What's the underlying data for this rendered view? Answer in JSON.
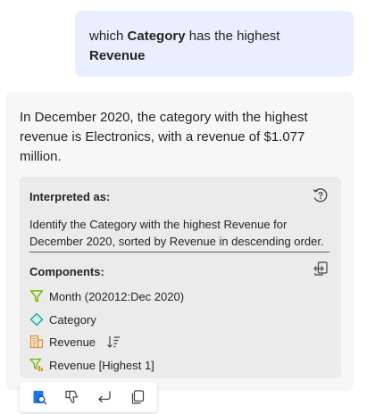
{
  "user_message": {
    "prefix": "which ",
    "bold1": "Category",
    "middle": " has the highest ",
    "bold2": "Revenue"
  },
  "response": {
    "answer": "In December 2020, the category with the highest revenue is Electronics, with a revenue of $1.077 million.",
    "interpreted_label": "Interpreted as:",
    "interpreted_text": "Identify the Category with the highest Revenue for December 2020, sorted by Revenue in descending order.",
    "components_label": "Components:",
    "components": [
      {
        "label": "Month (202012:Dec 2020)",
        "icon": "filter-icon"
      },
      {
        "label": "Category",
        "icon": "dimension-icon"
      },
      {
        "label": "Revenue",
        "icon": "measure-icon",
        "extra_icon": "sort-descending-icon"
      },
      {
        "label": "Revenue [Highest 1]",
        "icon": "top-filter-icon"
      }
    ]
  },
  "toolbar": {
    "icons": [
      "data-search-icon",
      "thumbs-down-icon",
      "reply-icon",
      "copy-icon"
    ]
  },
  "colors": {
    "user_bubble": "#e9effd",
    "card_bg": "#f7f7f7",
    "panel_bg": "#ebebeb",
    "filter_green": "#6bb700",
    "dimension_teal": "#1aa89a",
    "measure_orange": "#e8912d",
    "accent_blue": "#1a73e8"
  }
}
